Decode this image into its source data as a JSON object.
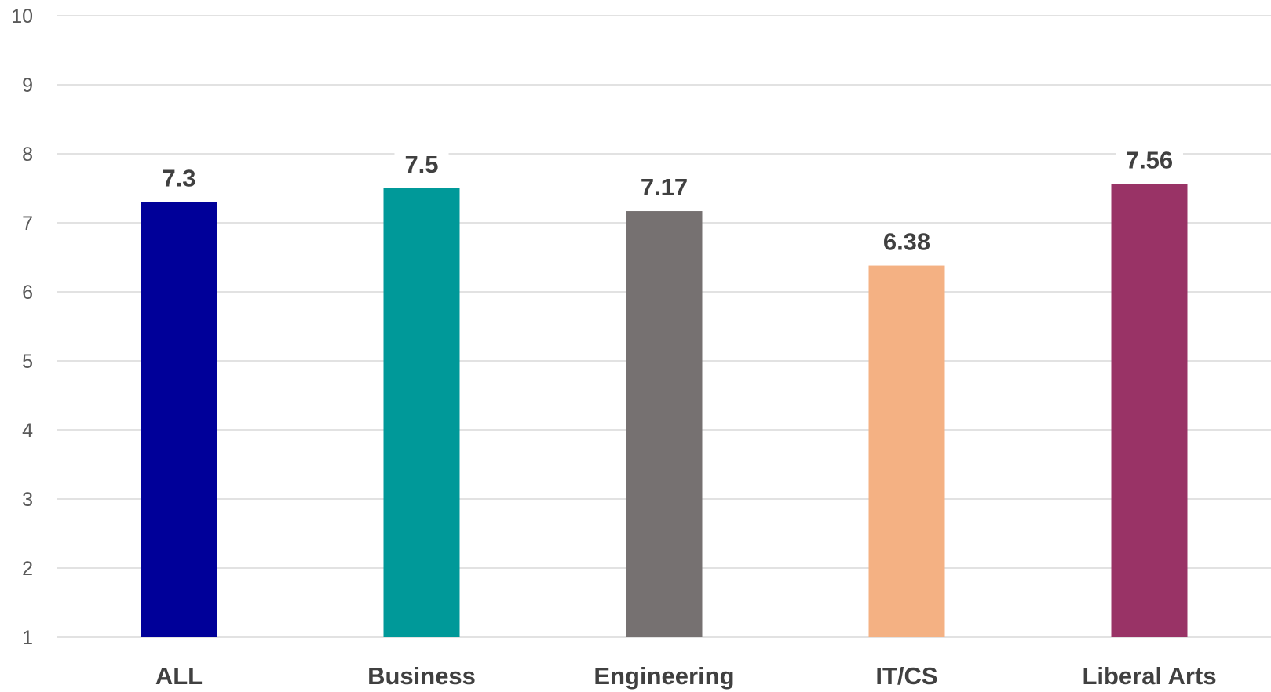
{
  "chart_data": {
    "type": "bar",
    "categories": [
      "ALL",
      "Business",
      "Engineering",
      "IT/CS",
      "Liberal Arts"
    ],
    "values": [
      7.3,
      7.5,
      7.17,
      6.38,
      7.56
    ],
    "data_labels": [
      "7.3",
      "7.5",
      "7.17",
      "6.38",
      "7.56"
    ],
    "colors": [
      "#000099",
      "#009999",
      "#767171",
      "#f4b183",
      "#993366"
    ],
    "title": "",
    "xlabel": "",
    "ylabel": "",
    "ylim": [
      1,
      10
    ],
    "y_ticks": [
      1,
      2,
      3,
      4,
      5,
      6,
      7,
      8,
      9,
      10
    ],
    "y_tick_labels": [
      "1",
      "2",
      "3",
      "4",
      "5",
      "6",
      "7",
      "8",
      "9",
      "10"
    ],
    "grid": true,
    "legend": "none"
  }
}
